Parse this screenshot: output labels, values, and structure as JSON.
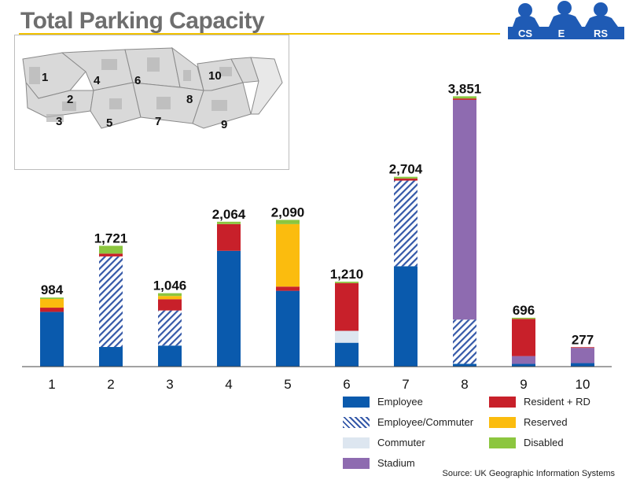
{
  "title": "Total Parking Capacity",
  "logo": {
    "parts": [
      "CS",
      "E",
      "RS"
    ]
  },
  "map": {
    "zone_labels": [
      "1",
      "2",
      "3",
      "4",
      "5",
      "6",
      "7",
      "8",
      "9",
      "10"
    ]
  },
  "source": "Source: UK Geographic Information  Systems",
  "colors": {
    "employee": "#0a5aad",
    "employee_commuter": "#3458a8",
    "commuter": "#dde6f0",
    "stadium": "#8e6bb0",
    "resident": "#c8202a",
    "reserved": "#fbbc0e",
    "disabled": "#8cc63f"
  },
  "chart_data": {
    "type": "bar",
    "stacked": true,
    "categories": [
      "1",
      "2",
      "3",
      "4",
      "5",
      "6",
      "7",
      "8",
      "9",
      "10"
    ],
    "totals": [
      984,
      1721,
      1046,
      2064,
      2090,
      1210,
      2704,
      3851,
      696,
      277
    ],
    "total_labels": [
      "984",
      "1,721",
      "1,046",
      "2,064",
      "2,090",
      "1,210",
      "2,704",
      "3,851",
      "696",
      "277"
    ],
    "ylim": [
      0,
      3900
    ],
    "series": [
      {
        "key": "employee",
        "name": "Employee",
        "values": [
          780,
          280,
          300,
          1650,
          1080,
          340,
          1430,
          40,
          40,
          50
        ]
      },
      {
        "key": "employee_commuter",
        "name": "Employee/Commuter",
        "values": [
          0,
          1290,
          500,
          0,
          0,
          0,
          1220,
          630,
          0,
          0
        ]
      },
      {
        "key": "commuter",
        "name": "Commuter",
        "values": [
          0,
          0,
          0,
          0,
          0,
          170,
          0,
          0,
          0,
          0
        ]
      },
      {
        "key": "stadium",
        "name": "Stadium",
        "values": [
          0,
          0,
          0,
          0,
          0,
          0,
          0,
          3130,
          110,
          217
        ]
      },
      {
        "key": "resident",
        "name": "Resident + RD",
        "values": [
          60,
          40,
          160,
          380,
          60,
          680,
          30,
          20,
          530,
          10
        ]
      },
      {
        "key": "reserved",
        "name": "Reserved",
        "values": [
          124,
          0,
          46,
          0,
          890,
          0,
          0,
          0,
          0,
          0
        ]
      },
      {
        "key": "disabled",
        "name": "Disabled",
        "values": [
          20,
          111,
          40,
          34,
          60,
          20,
          24,
          31,
          16,
          0
        ]
      }
    ]
  }
}
